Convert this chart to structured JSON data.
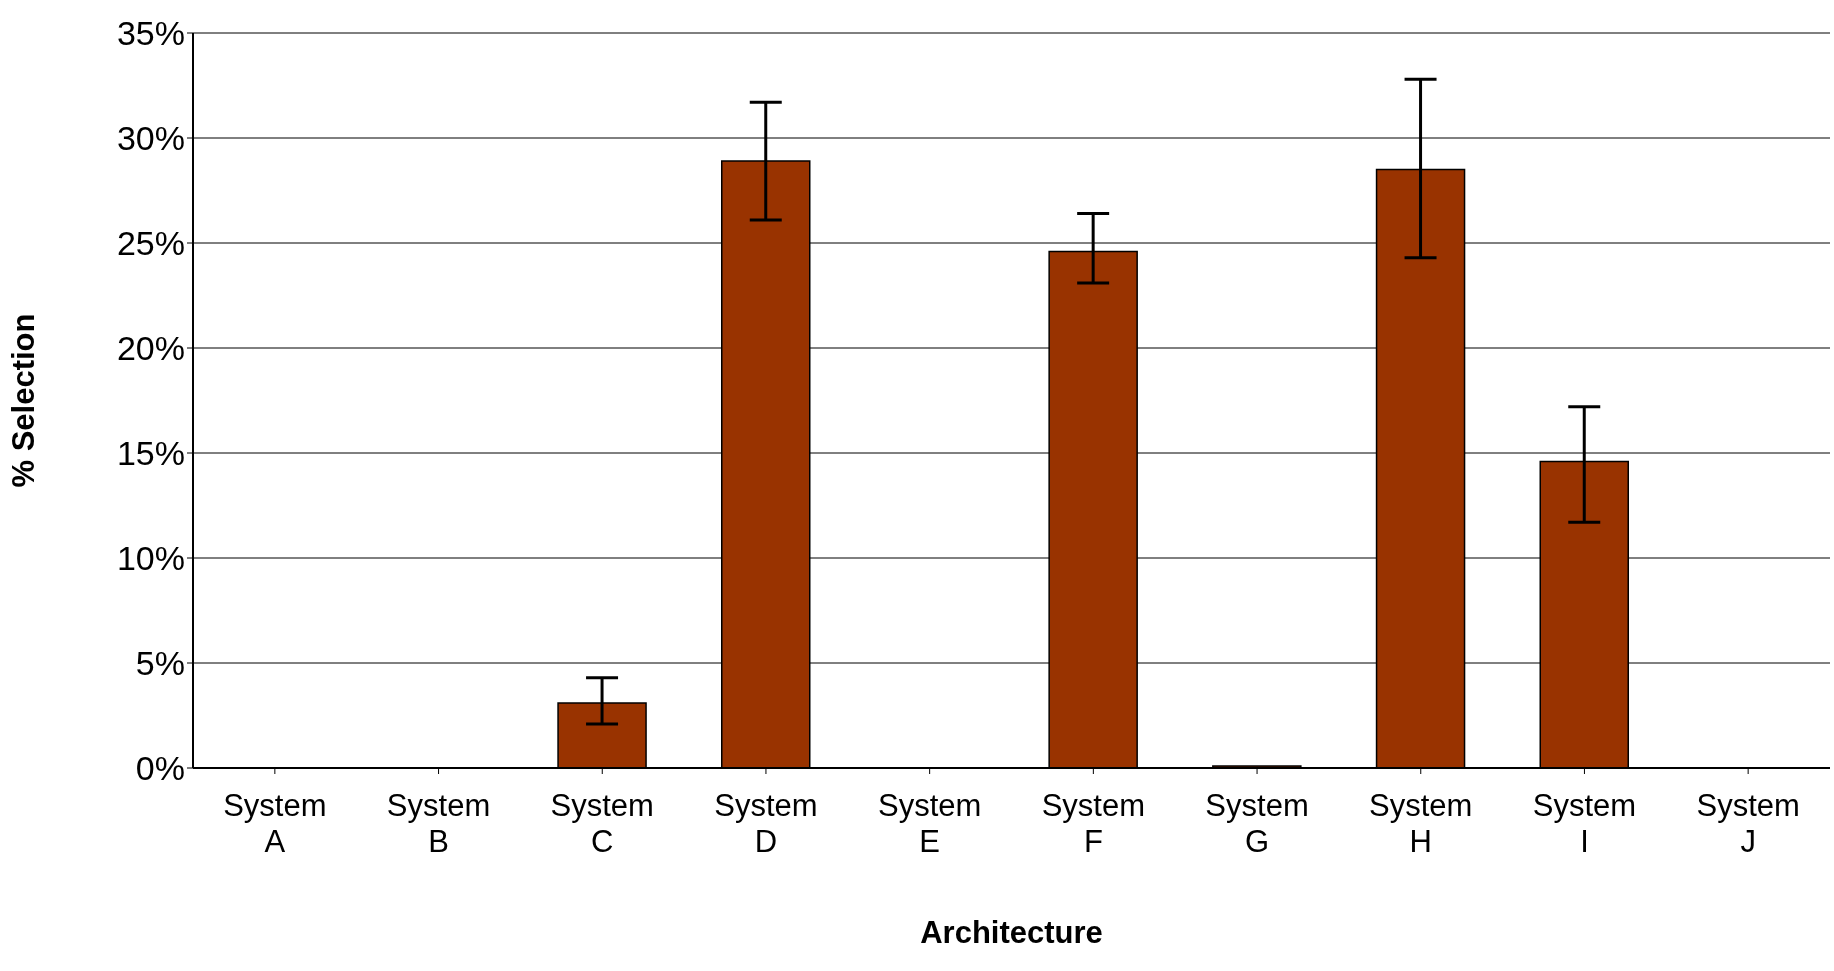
{
  "chart_data": {
    "type": "bar",
    "xlabel": "Architecture",
    "ylabel": "% Selection",
    "categories": [
      "System A",
      "System B",
      "System C",
      "System D",
      "System E",
      "System F",
      "System G",
      "System H",
      "System I",
      "System J"
    ],
    "values": [
      0,
      0,
      3.1,
      28.9,
      0,
      24.6,
      0.1,
      28.5,
      14.6,
      0
    ],
    "errors": [
      null,
      null,
      [
        2.1,
        4.3
      ],
      [
        26.1,
        31.7
      ],
      null,
      [
        23.1,
        26.4
      ],
      null,
      [
        24.3,
        32.8
      ],
      [
        11.7,
        17.2
      ],
      null
    ],
    "color": "#993300",
    "ylim": [
      0,
      35
    ],
    "yticks": [
      {
        "value": 0,
        "label": "0%"
      },
      {
        "value": 5,
        "label": "5%"
      },
      {
        "value": 10,
        "label": "10%"
      },
      {
        "value": 15,
        "label": "15%"
      },
      {
        "value": 20,
        "label": "20%"
      },
      {
        "value": 25,
        "label": "25%"
      },
      {
        "value": 30,
        "label": "30%"
      },
      {
        "value": 35,
        "label": "35%"
      }
    ],
    "grid": "y"
  }
}
